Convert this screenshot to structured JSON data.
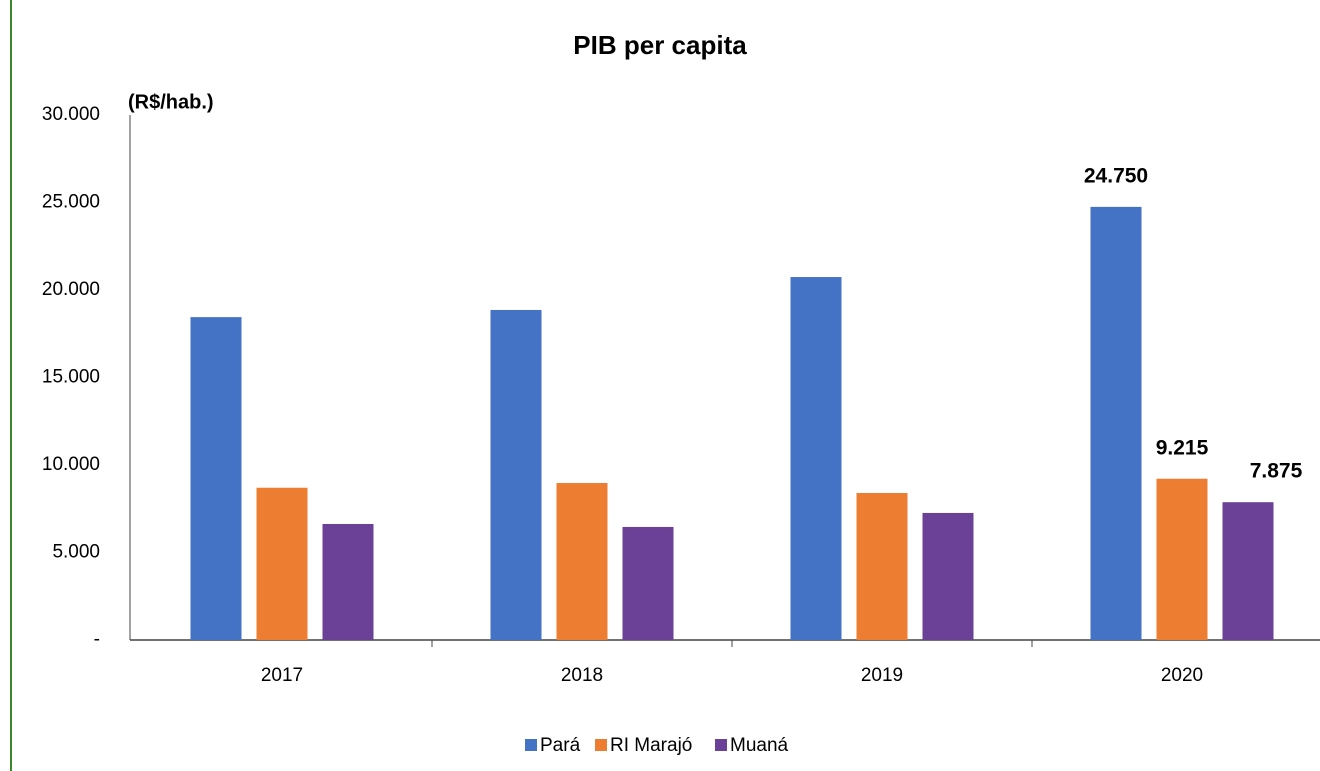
{
  "chart_data": {
    "type": "bar",
    "title": "PIB per capita",
    "y_label": "(R$/hab.)",
    "categories": [
      "2017",
      "2018",
      "2019",
      "2020"
    ],
    "series": [
      {
        "name": "Pará",
        "color": "#4472c4",
        "values": [
          18450,
          18860,
          20740,
          24750
        ],
        "value_labels": [
          null,
          null,
          null,
          "24.750"
        ]
      },
      {
        "name": "RI Marajó",
        "color": "#ed7d31",
        "values": [
          8700,
          8970,
          8400,
          9215
        ],
        "value_labels": [
          null,
          null,
          null,
          "9.215"
        ]
      },
      {
        "name": "Muaná",
        "color": "#6a4196",
        "values": [
          6630,
          6460,
          7260,
          7875
        ],
        "value_labels": [
          null,
          null,
          null,
          "7.875"
        ]
      }
    ],
    "ylim": [
      0,
      30000
    ],
    "yticks": [
      {
        "value": 0,
        "label": "-"
      },
      {
        "value": 5000,
        "label": "5.000"
      },
      {
        "value": 10000,
        "label": "10.000"
      },
      {
        "value": 15000,
        "label": "15.000"
      },
      {
        "value": 20000,
        "label": "20.000"
      },
      {
        "value": 25000,
        "label": "25.000"
      },
      {
        "value": 30000,
        "label": "30.000"
      }
    ],
    "grid": false,
    "legend": "bottom"
  }
}
